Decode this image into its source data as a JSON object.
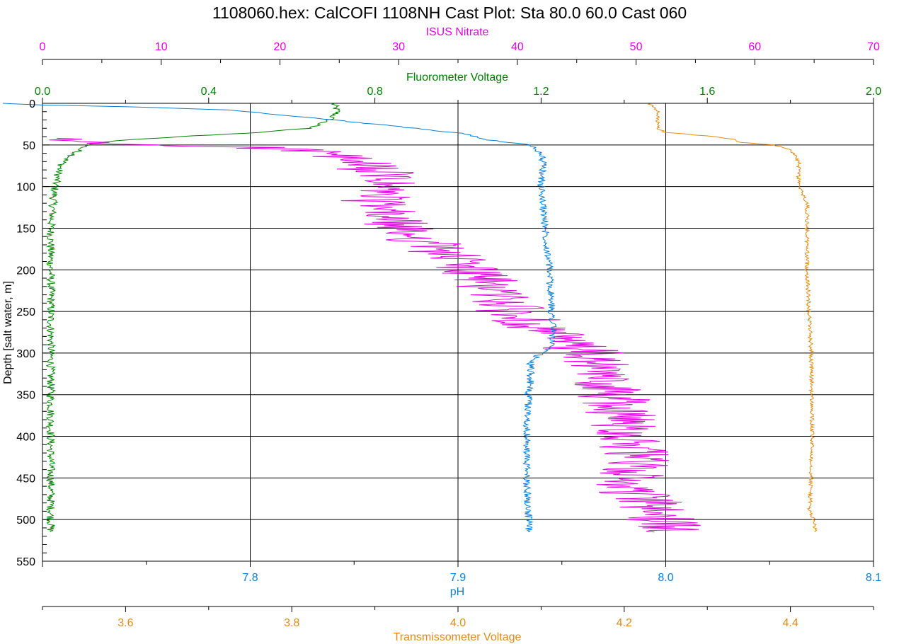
{
  "chart_data": {
    "type": "line",
    "title": "1108060.hex: CalCOFI 1108NH Cast Plot: Sta 80.0 60.0 Cast 060",
    "y_axis": {
      "label": "Depth [salt water, m]",
      "range": [
        0,
        550
      ],
      "ticks": [
        "0",
        "50",
        "100",
        "150",
        "200",
        "250",
        "300",
        "350",
        "400",
        "450",
        "500",
        "550"
      ],
      "inverted": true
    },
    "x_axes": [
      {
        "id": "nitrate",
        "label": "ISUS Nitrate",
        "color": "#e600e6",
        "range": [
          0,
          70
        ],
        "ticks": [
          "0",
          "10",
          "20",
          "30",
          "40",
          "50",
          "60",
          "70"
        ]
      },
      {
        "id": "fluor",
        "label": "Fluorometer Voltage",
        "color": "#008000",
        "range": [
          0.0,
          2.0
        ],
        "ticks": [
          "0.0",
          "0.4",
          "0.8",
          "1.2",
          "1.6",
          "2.0"
        ]
      },
      {
        "id": "ph",
        "label": "pH",
        "color": "#0a7ed2",
        "range": [
          7.7,
          8.1
        ],
        "ticks": [
          "7.8",
          "7.9",
          "8.0",
          "8.1"
        ]
      },
      {
        "id": "trans",
        "label": "Transmissometer Voltage",
        "color": "#e08a14",
        "range": [
          3.5,
          4.5
        ],
        "ticks": [
          "3.6",
          "3.8",
          "4.0",
          "4.2",
          "4.4"
        ]
      }
    ],
    "grid": true,
    "series": [
      {
        "axis": "fluor",
        "color": "#008000",
        "noise": 0.01,
        "points": [
          [
            0,
            0.7
          ],
          [
            10,
            0.71
          ],
          [
            20,
            0.69
          ],
          [
            30,
            0.64
          ],
          [
            35,
            0.52
          ],
          [
            40,
            0.33
          ],
          [
            45,
            0.17
          ],
          [
            50,
            0.11
          ],
          [
            55,
            0.09
          ],
          [
            60,
            0.08
          ],
          [
            70,
            0.05
          ],
          [
            80,
            0.04
          ],
          [
            100,
            0.03
          ],
          [
            150,
            0.02
          ],
          [
            300,
            0.02
          ],
          [
            515,
            0.02
          ]
        ]
      },
      {
        "axis": "nitrate",
        "color": "#e600e6",
        "noise": 3.0,
        "points": [
          [
            42,
            0
          ],
          [
            48,
            5
          ],
          [
            50,
            10
          ],
          [
            52,
            16
          ],
          [
            55,
            21
          ],
          [
            60,
            24
          ],
          [
            70,
            26
          ],
          [
            80,
            28
          ],
          [
            90,
            29
          ],
          [
            100,
            28.5
          ],
          [
            120,
            28
          ],
          [
            150,
            30
          ],
          [
            180,
            34
          ],
          [
            200,
            36
          ],
          [
            230,
            38.5
          ],
          [
            250,
            39.5
          ],
          [
            280,
            43
          ],
          [
            300,
            46
          ],
          [
            330,
            47
          ],
          [
            350,
            48
          ],
          [
            380,
            49
          ],
          [
            400,
            49.5
          ],
          [
            430,
            50
          ],
          [
            460,
            49
          ],
          [
            480,
            51
          ],
          [
            500,
            52
          ],
          [
            515,
            53
          ]
        ]
      },
      {
        "axis": "ph",
        "color": "#0a7ed2",
        "noise": 0.0018,
        "points": [
          [
            0,
            7.68
          ],
          [
            2,
            7.7
          ],
          [
            4,
            7.74
          ],
          [
            8,
            7.79
          ],
          [
            15,
            7.82
          ],
          [
            25,
            7.86
          ],
          [
            33,
            7.89
          ],
          [
            37,
            7.905
          ],
          [
            42,
            7.91
          ],
          [
            46,
            7.92
          ],
          [
            50,
            7.935
          ],
          [
            60,
            7.94
          ],
          [
            70,
            7.941
          ],
          [
            100,
            7.94
          ],
          [
            150,
            7.942
          ],
          [
            200,
            7.944
          ],
          [
            250,
            7.945
          ],
          [
            270,
            7.946
          ],
          [
            290,
            7.945
          ],
          [
            300,
            7.94
          ],
          [
            310,
            7.935
          ],
          [
            330,
            7.935
          ],
          [
            350,
            7.934
          ],
          [
            400,
            7.933
          ],
          [
            450,
            7.933
          ],
          [
            500,
            7.934
          ],
          [
            515,
            7.934
          ]
        ]
      },
      {
        "axis": "trans",
        "color": "#e08a14",
        "noise": 0.0025,
        "points": [
          [
            0,
            4.23
          ],
          [
            10,
            4.24
          ],
          [
            20,
            4.24
          ],
          [
            30,
            4.24
          ],
          [
            35,
            4.25
          ],
          [
            40,
            4.31
          ],
          [
            43,
            4.33
          ],
          [
            47,
            4.34
          ],
          [
            50,
            4.38
          ],
          [
            55,
            4.4
          ],
          [
            70,
            4.41
          ],
          [
            90,
            4.41
          ],
          [
            100,
            4.41
          ],
          [
            120,
            4.42
          ],
          [
            150,
            4.42
          ],
          [
            200,
            4.42
          ],
          [
            300,
            4.425
          ],
          [
            400,
            4.426
          ],
          [
            450,
            4.425
          ],
          [
            490,
            4.423
          ],
          [
            500,
            4.428
          ],
          [
            515,
            4.43
          ]
        ]
      }
    ]
  }
}
